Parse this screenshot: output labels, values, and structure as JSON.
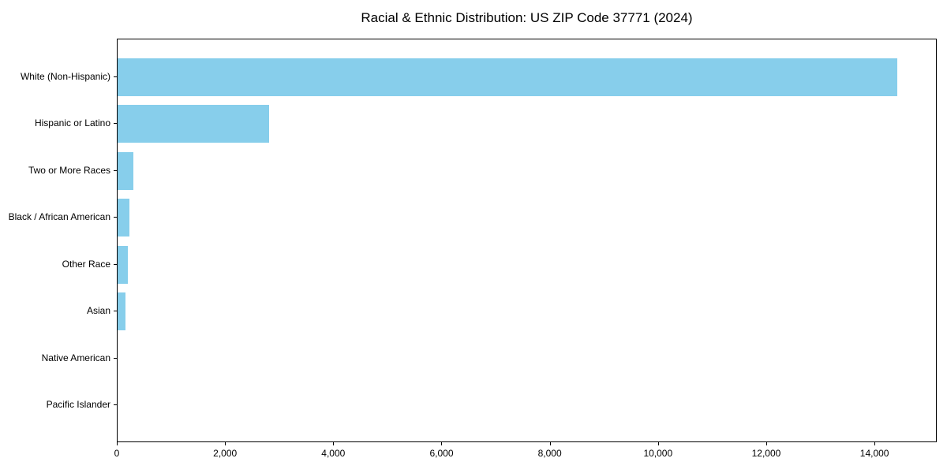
{
  "chart_data": {
    "type": "bar",
    "orientation": "horizontal",
    "title": "Racial & Ethnic Distribution: US ZIP Code 37771 (2024)",
    "xlabel": "",
    "ylabel": "",
    "categories": [
      "White (Non-Hispanic)",
      "Hispanic or Latino",
      "Two or More Races",
      "Black / African American",
      "Other Race",
      "Asian",
      "Native American",
      "Pacific Islander"
    ],
    "values": [
      14400,
      2800,
      290,
      220,
      190,
      150,
      0,
      0
    ],
    "xlim": [
      0,
      15150
    ],
    "x_ticks": [
      0,
      2000,
      4000,
      6000,
      8000,
      10000,
      12000,
      14000
    ],
    "x_tick_labels": [
      "0",
      "2,000",
      "4,000",
      "6,000",
      "8,000",
      "10,000",
      "12,000",
      "14,000"
    ],
    "grid": false,
    "legend": null,
    "bar_color": "#87CEEB",
    "axis_color": "#000000",
    "background_color": "#ffffff"
  }
}
